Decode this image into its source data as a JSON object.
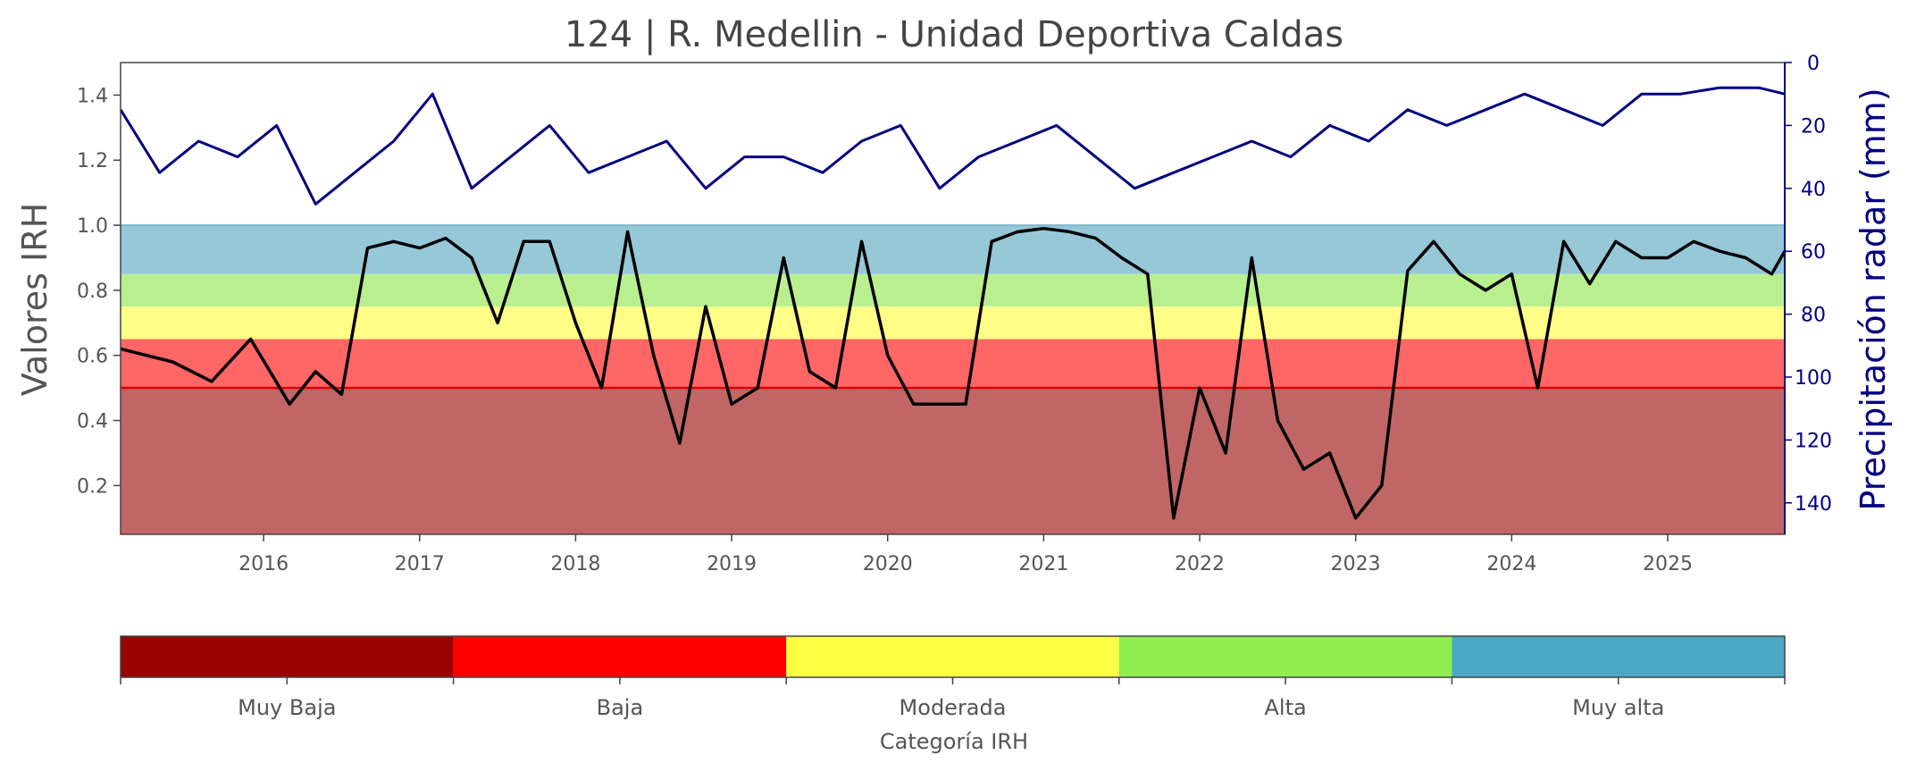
{
  "chart_data": {
    "type": "line",
    "title": "124 | R. Medellin - Unidad Deportiva Caldas",
    "ylabel": "Valores IRH",
    "y2label": "Precipitación radar (mm)",
    "xlim": [
      "2015-02-01",
      "2025-10-01"
    ],
    "ylim": [
      0.05,
      1.5
    ],
    "y2lim": [
      150,
      0
    ],
    "x_ticks": [
      "2016",
      "2017",
      "2018",
      "2019",
      "2020",
      "2021",
      "2022",
      "2023",
      "2024",
      "2025"
    ],
    "y_ticks": [
      0.2,
      0.4,
      0.6,
      0.8,
      1.0,
      1.2,
      1.4
    ],
    "y2_ticks": [
      0,
      20,
      40,
      60,
      80,
      100,
      120,
      140
    ],
    "y2_inverted": true,
    "grid": false,
    "bands": [
      {
        "name": "Muy Baja",
        "from": 0.0,
        "to": 0.5,
        "color": "#c06666"
      },
      {
        "name": "Baja",
        "from": 0.5,
        "to": 0.65,
        "color": "#ff6666"
      },
      {
        "name": "Moderada",
        "from": 0.65,
        "to": 0.75,
        "color": "#ffff88"
      },
      {
        "name": "Alta",
        "from": 0.75,
        "to": 0.85,
        "color": "#b8f090"
      },
      {
        "name": "Muy alta",
        "from": 0.85,
        "to": 1.0,
        "color": "#96c8d8"
      }
    ],
    "threshold_line": {
      "y": 0.5,
      "color": "#dd0000"
    },
    "series": [
      {
        "axis": "left",
        "color": "#000000",
        "x": [
          "2015-02-01",
          "2015-06-01",
          "2015-09-01",
          "2015-12-01",
          "2016-03-01",
          "2016-05-01",
          "2016-07-01",
          "2016-09-01",
          "2016-11-01",
          "2017-01-01",
          "2017-03-01",
          "2017-05-01",
          "2017-07-01",
          "2017-09-01",
          "2017-11-01",
          "2018-01-01",
          "2018-03-01",
          "2018-05-01",
          "2018-07-01",
          "2018-09-01",
          "2018-11-01",
          "2019-01-01",
          "2019-03-01",
          "2019-05-01",
          "2019-07-01",
          "2019-09-01",
          "2019-11-01",
          "2020-01-01",
          "2020-03-01",
          "2020-05-01",
          "2020-07-01",
          "2020-09-01",
          "2020-11-01",
          "2021-01-01",
          "2021-03-01",
          "2021-05-01",
          "2021-07-01",
          "2021-09-01",
          "2021-11-01",
          "2022-01-01",
          "2022-03-01",
          "2022-05-01",
          "2022-07-01",
          "2022-09-01",
          "2022-11-01",
          "2023-01-01",
          "2023-03-01",
          "2023-05-01",
          "2023-07-01",
          "2023-09-01",
          "2023-11-01",
          "2024-01-01",
          "2024-03-01",
          "2024-05-01",
          "2024-07-01",
          "2024-09-01",
          "2024-11-01",
          "2025-01-01",
          "2025-03-01",
          "2025-05-01",
          "2025-07-01",
          "2025-09-01",
          "2025-10-01"
        ],
        "y": [
          0.62,
          0.58,
          0.52,
          0.65,
          0.45,
          0.55,
          0.48,
          0.93,
          0.95,
          0.93,
          0.96,
          0.9,
          0.7,
          0.95,
          0.95,
          0.7,
          0.5,
          0.98,
          0.6,
          0.33,
          0.75,
          0.45,
          0.5,
          0.9,
          0.55,
          0.5,
          0.95,
          0.6,
          0.45,
          0.45,
          0.45,
          0.95,
          0.98,
          0.99,
          0.98,
          0.96,
          0.9,
          0.85,
          0.1,
          0.5,
          0.3,
          0.9,
          0.4,
          0.25,
          0.3,
          0.1,
          0.2,
          0.86,
          0.95,
          0.85,
          0.8,
          0.85,
          0.5,
          0.95,
          0.82,
          0.95,
          0.9,
          0.9,
          0.95,
          0.92,
          0.9,
          0.85,
          0.92
        ]
      },
      {
        "axis": "right",
        "color": "#000080",
        "x": [
          "2015-02-01",
          "2015-05-01",
          "2015-08-01",
          "2015-11-01",
          "2016-02-01",
          "2016-05-01",
          "2016-08-01",
          "2016-11-01",
          "2017-02-01",
          "2017-05-01",
          "2017-08-01",
          "2017-11-01",
          "2018-02-01",
          "2018-05-01",
          "2018-08-01",
          "2018-11-01",
          "2019-02-01",
          "2019-05-01",
          "2019-08-01",
          "2019-11-01",
          "2020-02-01",
          "2020-05-01",
          "2020-08-01",
          "2020-11-01",
          "2021-02-01",
          "2021-05-01",
          "2021-08-01",
          "2021-11-01",
          "2022-02-01",
          "2022-05-01",
          "2022-08-01",
          "2022-11-01",
          "2023-02-01",
          "2023-05-01",
          "2023-08-01",
          "2023-11-01",
          "2024-02-01",
          "2024-05-01",
          "2024-08-01",
          "2024-11-01",
          "2025-02-01",
          "2025-05-01",
          "2025-08-01",
          "2025-10-01"
        ],
        "y": [
          15,
          35,
          25,
          30,
          20,
          45,
          35,
          25,
          10,
          40,
          30,
          20,
          35,
          30,
          25,
          40,
          30,
          30,
          35,
          25,
          20,
          40,
          30,
          25,
          20,
          30,
          40,
          35,
          30,
          25,
          30,
          20,
          25,
          15,
          20,
          15,
          10,
          15,
          20,
          10,
          10,
          8,
          8,
          10
        ]
      }
    ]
  },
  "colorbar": {
    "title": "Categoría IRH",
    "labels": [
      "Muy Baja",
      "Baja",
      "Moderada",
      "Alta",
      "Muy alta"
    ],
    "colors": [
      "#990000",
      "#ff0000",
      "#ffff44",
      "#90ee50",
      "#4aa8c4"
    ]
  }
}
